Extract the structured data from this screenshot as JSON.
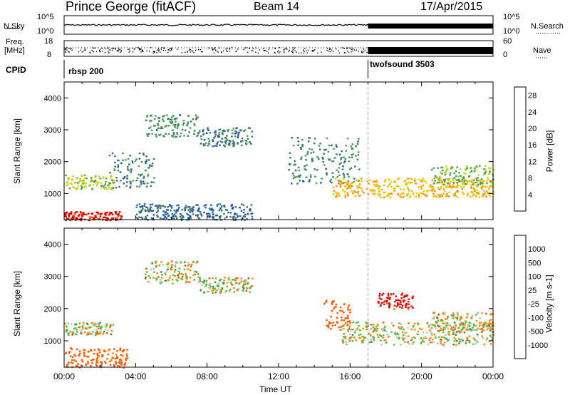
{
  "header": {
    "station": "Prince George (fitACF)",
    "beam": "Beam 14",
    "date": "17/Apr/2015"
  },
  "noise_panel": {
    "left_label": "N.Sky",
    "right_label": "N.Search",
    "left_ticks": [
      "10^5",
      "10^0"
    ],
    "right_ticks": [
      "10^5",
      "10^0"
    ]
  },
  "freq_panel": {
    "left_label_1": "Freq.",
    "left_label_2": "[MHz]",
    "left_ticks": [
      "18",
      "8"
    ],
    "right_ticks": [
      "60",
      "0"
    ],
    "right_label": "Nave"
  },
  "cpid": {
    "label": "CPID",
    "segments": [
      {
        "name": "rbsp 200",
        "start_hour": 0.0,
        "end_hour": 17.0
      },
      {
        "name": "twofsound 3503",
        "start_hour": 17.0,
        "end_hour": 24.0
      }
    ]
  },
  "colors": {
    "velocity_scale": [
      "#0000cc",
      "#2a5fb0",
      "#3f8f3f",
      "#59c040",
      "#c0c0c0",
      "#c0c0c0",
      "#ff8c00",
      "#ff5a00",
      "#e60000"
    ],
    "power_scale": [
      "#0a14e6",
      "#2a58b8",
      "#3f7a6a",
      "#4f9e5a",
      "#c0d830",
      "#f4c000",
      "#ff8c00",
      "#ff5000",
      "#e60000"
    ]
  },
  "chart_data": [
    {
      "type": "heatmap",
      "name": "power",
      "ylabel": "Slant Range [km]",
      "ylim": [
        180,
        4500
      ],
      "yticks": [
        "1000",
        "2000",
        "3000",
        "4000"
      ],
      "colorbar_label": "Power [dB]",
      "colorbar_ticks": [
        "4",
        "8",
        "12",
        "16",
        "20",
        "24",
        "28"
      ],
      "colorbar_range": [
        0,
        30
      ],
      "regions": [
        {
          "t0": 0.0,
          "t1": 3.2,
          "r0": 180,
          "r1": 450,
          "value": 29
        },
        {
          "t0": 0.0,
          "t1": 2.8,
          "r0": 1150,
          "r1": 1600,
          "value": 15
        },
        {
          "t0": 2.5,
          "t1": 5.0,
          "r0": 1200,
          "r1": 2300,
          "value": 9
        },
        {
          "t0": 4.5,
          "t1": 7.5,
          "r0": 2800,
          "r1": 3500,
          "value": 10
        },
        {
          "t0": 7.5,
          "t1": 10.5,
          "r0": 2500,
          "r1": 3100,
          "value": 8
        },
        {
          "t0": 12.5,
          "t1": 16.5,
          "r0": 1300,
          "r1": 2800,
          "value": 9
        },
        {
          "t0": 15.0,
          "t1": 24.0,
          "r0": 900,
          "r1": 1500,
          "value": 19
        },
        {
          "t0": 20.5,
          "t1": 24.0,
          "r0": 1300,
          "r1": 1900,
          "value": 13
        },
        {
          "t0": 4.0,
          "t1": 10.5,
          "r0": 180,
          "r1": 700,
          "value": 7
        }
      ]
    },
    {
      "type": "heatmap",
      "name": "velocity",
      "ylabel": "Slant Range [km]",
      "ylim": [
        180,
        4500
      ],
      "yticks": [
        "1000",
        "2000",
        "3000",
        "4000"
      ],
      "xlabel": "Time UT",
      "xticks": [
        "00:00",
        "04:00",
        "08:00",
        "12:00",
        "16:00",
        "20:00",
        "00:00"
      ],
      "xlim": [
        0,
        24
      ],
      "colorbar_label": "Velocity [m s-1]",
      "colorbar_ticks": [
        "1000",
        "500",
        "100",
        "25",
        "-25",
        "-100",
        "-500",
        "-1000"
      ],
      "regions": [
        {
          "t0": 0.0,
          "t1": 3.5,
          "r0": 180,
          "r1": 800,
          "value": -200
        },
        {
          "t0": 0.0,
          "t1": 2.8,
          "r0": 1200,
          "r1": 1600,
          "value": 0
        },
        {
          "t0": 4.5,
          "t1": 7.5,
          "r0": 2800,
          "r1": 3500,
          "value": 0
        },
        {
          "t0": 7.5,
          "t1": 10.5,
          "r0": 2500,
          "r1": 3000,
          "value": 0
        },
        {
          "t0": 14.5,
          "t1": 16.0,
          "r0": 1300,
          "r1": 2300,
          "value": -300
        },
        {
          "t0": 15.5,
          "t1": 24.0,
          "r0": 900,
          "r1": 1600,
          "value": 0
        },
        {
          "t0": 17.5,
          "t1": 19.5,
          "r0": 2000,
          "r1": 2500,
          "value": -600
        },
        {
          "t0": 20.5,
          "t1": 24.0,
          "r0": 1300,
          "r1": 1900,
          "value": 0
        }
      ]
    }
  ]
}
